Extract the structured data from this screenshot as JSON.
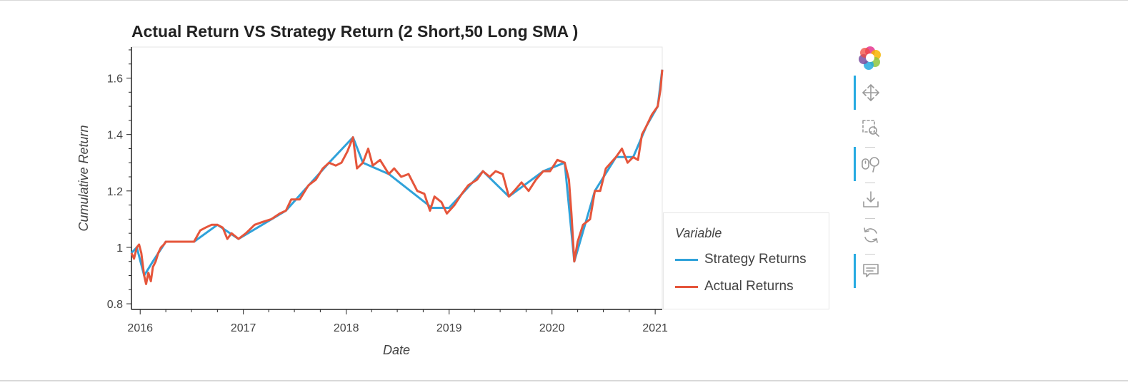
{
  "chart_data": {
    "type": "line",
    "title": "Actual Return VS Strategy Return (2 Short,50 Long SMA )",
    "xlabel": "Date",
    "ylabel": "Cumulative Return",
    "xlim": [
      "2015-12-01",
      "2021-01-26"
    ],
    "ylim": [
      0.78,
      1.71
    ],
    "x_ticks": [
      "2016",
      "2017",
      "2018",
      "2019",
      "2020",
      "2021"
    ],
    "y_ticks": [
      "0.8",
      "1",
      "1.2",
      "1.4",
      "1.6"
    ],
    "legend_title": "Variable",
    "legend_position": "right",
    "series": [
      {
        "name": "Strategy Returns",
        "color": "#30a2da",
        "points": [
          [
            "2015-12-01",
            0.98
          ],
          [
            "2015-12-20",
            1.0
          ],
          [
            "2016-01-15",
            0.9
          ],
          [
            "2016-02-15",
            0.95
          ],
          [
            "2016-04-01",
            1.02
          ],
          [
            "2016-07-10",
            1.02
          ],
          [
            "2016-10-01",
            1.08
          ],
          [
            "2016-12-15",
            1.03
          ],
          [
            "2017-06-01",
            1.13
          ],
          [
            "2017-11-01",
            1.3
          ],
          [
            "2018-01-25",
            1.39
          ],
          [
            "2018-03-01",
            1.3
          ],
          [
            "2018-06-01",
            1.26
          ],
          [
            "2018-11-01",
            1.14
          ],
          [
            "2019-01-01",
            1.14
          ],
          [
            "2019-05-01",
            1.27
          ],
          [
            "2019-08-01",
            1.18
          ],
          [
            "2019-12-01",
            1.27
          ],
          [
            "2020-02-15",
            1.3
          ],
          [
            "2020-03-20",
            0.95
          ],
          [
            "2020-06-01",
            1.2
          ],
          [
            "2020-08-15",
            1.32
          ],
          [
            "2020-10-15",
            1.32
          ],
          [
            "2020-12-01",
            1.43
          ],
          [
            "2021-01-10",
            1.5
          ],
          [
            "2021-01-26",
            1.63
          ]
        ]
      },
      {
        "name": "Actual Returns",
        "color": "#e5553b",
        "points": [
          [
            "2015-12-01",
            0.98
          ],
          [
            "2015-12-10",
            0.96
          ],
          [
            "2015-12-20",
            1.0
          ],
          [
            "2015-12-28",
            1.01
          ],
          [
            "2016-01-05",
            0.98
          ],
          [
            "2016-01-15",
            0.9
          ],
          [
            "2016-01-22",
            0.87
          ],
          [
            "2016-01-30",
            0.91
          ],
          [
            "2016-02-08",
            0.88
          ],
          [
            "2016-02-15",
            0.93
          ],
          [
            "2016-02-25",
            0.95
          ],
          [
            "2016-03-05",
            0.98
          ],
          [
            "2016-03-15",
            1.0
          ],
          [
            "2016-03-25",
            1.01
          ],
          [
            "2016-04-01",
            1.02
          ],
          [
            "2016-07-10",
            1.02
          ],
          [
            "2016-08-01",
            1.06
          ],
          [
            "2016-08-20",
            1.07
          ],
          [
            "2016-09-10",
            1.08
          ],
          [
            "2016-10-01",
            1.08
          ],
          [
            "2016-10-20",
            1.07
          ],
          [
            "2016-11-05",
            1.03
          ],
          [
            "2016-11-20",
            1.05
          ],
          [
            "2016-12-15",
            1.03
          ],
          [
            "2017-01-10",
            1.05
          ],
          [
            "2017-02-10",
            1.08
          ],
          [
            "2017-03-10",
            1.09
          ],
          [
            "2017-04-10",
            1.1
          ],
          [
            "2017-05-10",
            1.12
          ],
          [
            "2017-06-01",
            1.13
          ],
          [
            "2017-06-20",
            1.17
          ],
          [
            "2017-07-20",
            1.17
          ],
          [
            "2017-08-20",
            1.22
          ],
          [
            "2017-09-15",
            1.24
          ],
          [
            "2017-10-10",
            1.28
          ],
          [
            "2017-11-01",
            1.3
          ],
          [
            "2017-11-25",
            1.29
          ],
          [
            "2017-12-15",
            1.3
          ],
          [
            "2018-01-05",
            1.34
          ],
          [
            "2018-01-25",
            1.39
          ],
          [
            "2018-02-08",
            1.28
          ],
          [
            "2018-03-01",
            1.3
          ],
          [
            "2018-03-20",
            1.35
          ],
          [
            "2018-04-05",
            1.29
          ],
          [
            "2018-05-01",
            1.31
          ],
          [
            "2018-06-01",
            1.26
          ],
          [
            "2018-06-20",
            1.28
          ],
          [
            "2018-07-15",
            1.25
          ],
          [
            "2018-08-10",
            1.26
          ],
          [
            "2018-09-10",
            1.2
          ],
          [
            "2018-10-05",
            1.19
          ],
          [
            "2018-10-25",
            1.13
          ],
          [
            "2018-11-10",
            1.18
          ],
          [
            "2018-12-05",
            1.16
          ],
          [
            "2018-12-24",
            1.12
          ],
          [
            "2019-01-20",
            1.15
          ],
          [
            "2019-02-15",
            1.19
          ],
          [
            "2019-03-10",
            1.22
          ],
          [
            "2019-04-10",
            1.24
          ],
          [
            "2019-05-01",
            1.27
          ],
          [
            "2019-05-25",
            1.25
          ],
          [
            "2019-06-15",
            1.27
          ],
          [
            "2019-07-10",
            1.26
          ],
          [
            "2019-08-01",
            1.18
          ],
          [
            "2019-08-20",
            1.2
          ],
          [
            "2019-09-15",
            1.23
          ],
          [
            "2019-10-10",
            1.2
          ],
          [
            "2019-11-05",
            1.24
          ],
          [
            "2019-12-01",
            1.27
          ],
          [
            "2019-12-25",
            1.27
          ],
          [
            "2020-01-20",
            1.31
          ],
          [
            "2020-02-15",
            1.3
          ],
          [
            "2020-03-01",
            1.24
          ],
          [
            "2020-03-10",
            1.12
          ],
          [
            "2020-03-20",
            0.95
          ],
          [
            "2020-04-01",
            1.02
          ],
          [
            "2020-04-20",
            1.08
          ],
          [
            "2020-05-15",
            1.1
          ],
          [
            "2020-06-01",
            1.2
          ],
          [
            "2020-06-20",
            1.2
          ],
          [
            "2020-07-10",
            1.28
          ],
          [
            "2020-08-15",
            1.32
          ],
          [
            "2020-09-05",
            1.35
          ],
          [
            "2020-09-25",
            1.3
          ],
          [
            "2020-10-15",
            1.32
          ],
          [
            "2020-11-01",
            1.31
          ],
          [
            "2020-11-15",
            1.4
          ],
          [
            "2020-12-01",
            1.43
          ],
          [
            "2020-12-20",
            1.47
          ],
          [
            "2021-01-10",
            1.5
          ],
          [
            "2021-01-20",
            1.56
          ],
          [
            "2021-01-26",
            1.63
          ]
        ]
      }
    ],
    "grid": false
  },
  "toolbar": {
    "tools": [
      "logo-icon",
      "pan-icon",
      "box-zoom-icon",
      "wheel-zoom-icon",
      "save-icon",
      "reset-icon",
      "hover-icon"
    ],
    "active": [
      "pan-icon",
      "wheel-zoom-icon",
      "hover-icon"
    ]
  }
}
